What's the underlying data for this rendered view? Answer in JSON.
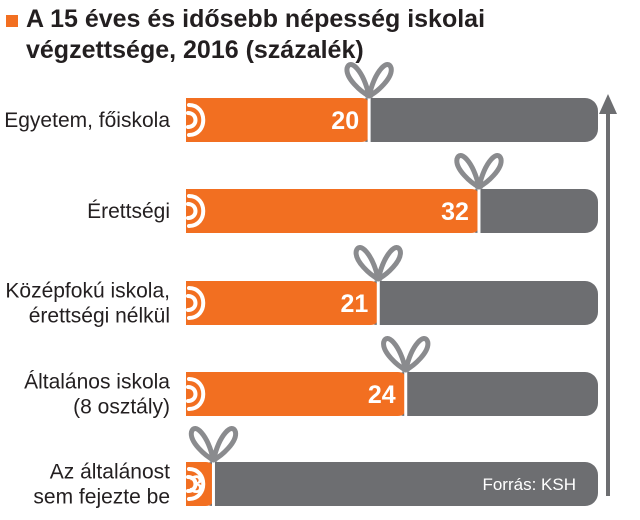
{
  "title": "A 15 éves és idősebb népesség iskolai végzettsége, 2016 (százalék)",
  "source": "Forrás: KSH",
  "colors": {
    "orange": "#f26f21",
    "gray": "#6d6e71",
    "bow": "#8a8b8e",
    "text": "#231f20",
    "arrow": "#6d6e71"
  },
  "chart_data": {
    "type": "bar",
    "categories": [
      [
        "Egyetem, főiskola"
      ],
      [
        "Érettségi"
      ],
      [
        "Középfokú iskola,",
        "érettségi nélkül"
      ],
      [
        "Általános iskola",
        "(8 osztály)"
      ],
      [
        "Az általánost",
        "sem fejezte be"
      ]
    ],
    "values": [
      20,
      32,
      21,
      24,
      3
    ],
    "unit": "százalék",
    "xlim": [
      0,
      45
    ]
  }
}
